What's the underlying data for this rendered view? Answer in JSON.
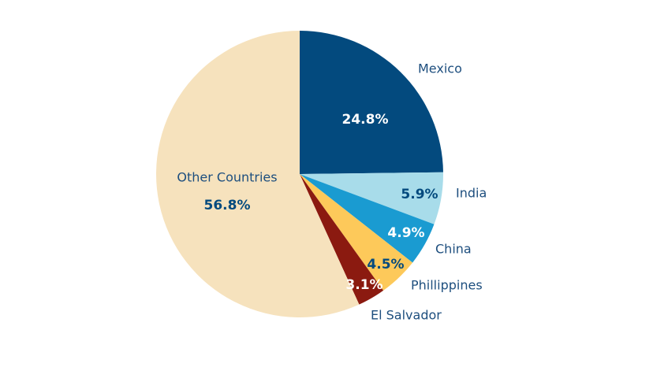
{
  "chart_data": {
    "type": "pie",
    "categories": [
      "Mexico",
      "India",
      "China",
      "Phillippines",
      "El Salvador",
      "Other Countries"
    ],
    "values": [
      24.8,
      5.9,
      4.9,
      4.5,
      3.1,
      56.8
    ],
    "value_labels": [
      "24.8%",
      "5.9%",
      "4.9%",
      "4.5%",
      "3.1%",
      "56.8%"
    ],
    "colors": [
      "#034a7e",
      "#a8dcea",
      "#1a9bd1",
      "#fdc95a",
      "#8b1a10",
      "#f6e2bd"
    ]
  }
}
